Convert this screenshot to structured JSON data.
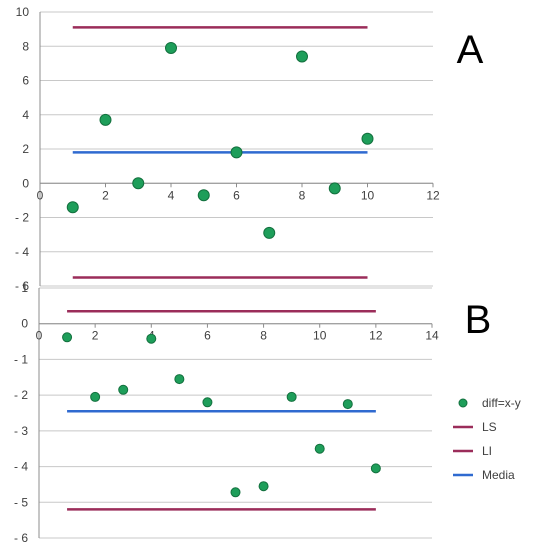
{
  "colors": {
    "points": "#1e9e5a",
    "point_edge": "#13703e",
    "ls": "#9b2d5a",
    "li": "#9b2d5a",
    "media": "#2f6ad0",
    "grid": "#c8c8c8",
    "axis": "#8c8c8c"
  },
  "chart_data": [
    {
      "type": "scatter",
      "panel_label": "A",
      "xlim": [
        0,
        12
      ],
      "ylim": [
        -6,
        10
      ],
      "x_ticks": [
        0,
        2,
        4,
        6,
        8,
        10,
        12
      ],
      "y_ticks": [
        10,
        8,
        6,
        4,
        2,
        0,
        -2,
        -4,
        -6
      ],
      "y_tick_labels": [
        "10",
        "8",
        "6",
        "4",
        "2",
        "0",
        "- 2",
        "- 4",
        "- 6"
      ],
      "grid": true,
      "points": {
        "x": [
          1,
          2,
          3,
          4,
          5,
          6,
          7,
          8,
          9,
          10
        ],
        "y": [
          -1.4,
          3.7,
          0,
          7.9,
          -0.7,
          1.8,
          -2.9,
          7.4,
          -0.3,
          2.6
        ]
      },
      "lines": {
        "LS": 9.1,
        "LI": -5.5,
        "Media": 1.8,
        "x_range": [
          1,
          10
        ]
      }
    },
    {
      "type": "scatter",
      "panel_label": "B",
      "xlim": [
        0,
        14
      ],
      "ylim": [
        -6,
        1
      ],
      "x_ticks": [
        0,
        2,
        4,
        6,
        8,
        10,
        12,
        14
      ],
      "y_ticks": [
        1,
        0,
        -1,
        -2,
        -3,
        -4,
        -5,
        -6
      ],
      "y_tick_labels": [
        "1",
        "0",
        "- 1",
        "- 2",
        "- 3",
        "- 4",
        "- 5",
        "- 6"
      ],
      "grid": true,
      "points": {
        "x": [
          1,
          2,
          3,
          4,
          5,
          6,
          7,
          8,
          9,
          10,
          11,
          12
        ],
        "y": [
          -0.38,
          -2.05,
          -1.85,
          -0.42,
          -1.55,
          -2.2,
          -4.72,
          -4.55,
          -2.05,
          -3.5,
          -2.25,
          -4.05
        ]
      },
      "lines": {
        "LS": 0.35,
        "LI": -5.2,
        "Media": -2.45,
        "x_range": [
          1,
          12
        ]
      },
      "legend": {
        "placement": "right",
        "entries": [
          {
            "label": "diff=x-y",
            "kind": "marker",
            "color_key": "points"
          },
          {
            "label": "LS",
            "kind": "line",
            "color_key": "ls"
          },
          {
            "label": "LI",
            "kind": "line",
            "color_key": "li"
          },
          {
            "label": "Media",
            "kind": "line",
            "color_key": "media"
          }
        ]
      }
    }
  ]
}
